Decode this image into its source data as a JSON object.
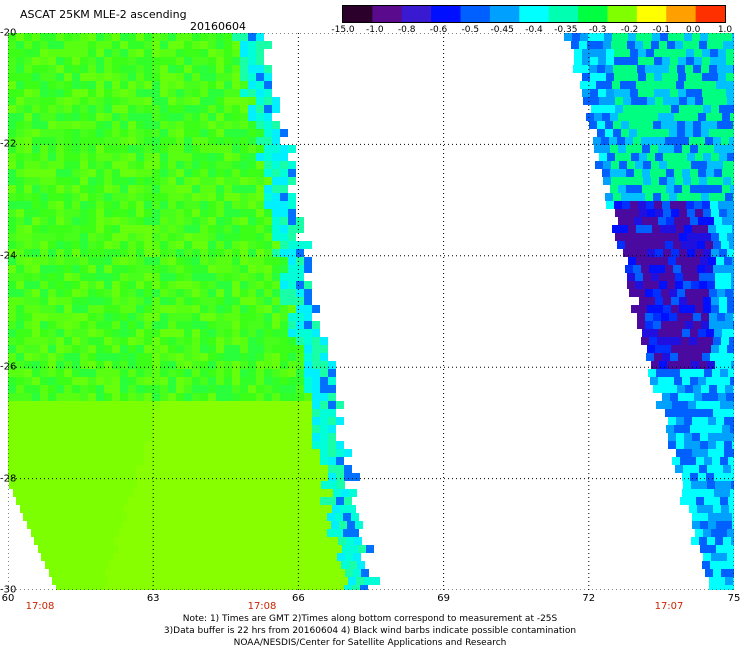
{
  "header": {
    "title": "ASCAT 25KM MLE-2 ascending",
    "date": "20160604"
  },
  "colorbar": {
    "labels": [
      "-15.0",
      "-1.0",
      "-0.8",
      "-0.6",
      "-0.5",
      "-0.45",
      "-0.4",
      "-0.35",
      "-0.3",
      "-0.2",
      "-0.1",
      "0.0",
      "1.0"
    ],
    "colors": [
      "#2b002b",
      "#5a0a8c",
      "#3a1ad0",
      "#0010ff",
      "#0060ff",
      "#00a0ff",
      "#00ffff",
      "#00ffb0",
      "#00ff40",
      "#80ff00",
      "#ffff00",
      "#ffa000",
      "#ff3000"
    ]
  },
  "map": {
    "lat_labels": [
      "-20",
      "-22",
      "-24",
      "-26",
      "-28",
      "-30"
    ],
    "lon_labels": [
      "60",
      "63",
      "66",
      "69",
      "72",
      "75"
    ],
    "time_labels": [
      "17:08",
      "17:08",
      "17:07"
    ]
  },
  "notes": {
    "line1": "Note: 1) Times are GMT 2)Times along bottom correspond to measurement at -25S",
    "line2": "3)Data buffer is 22 hrs from 20160604 4) Black wind barbs indicate possible contamination",
    "line3": "NOAA/NESDIS/Center for Satellite Applications and Research"
  }
}
